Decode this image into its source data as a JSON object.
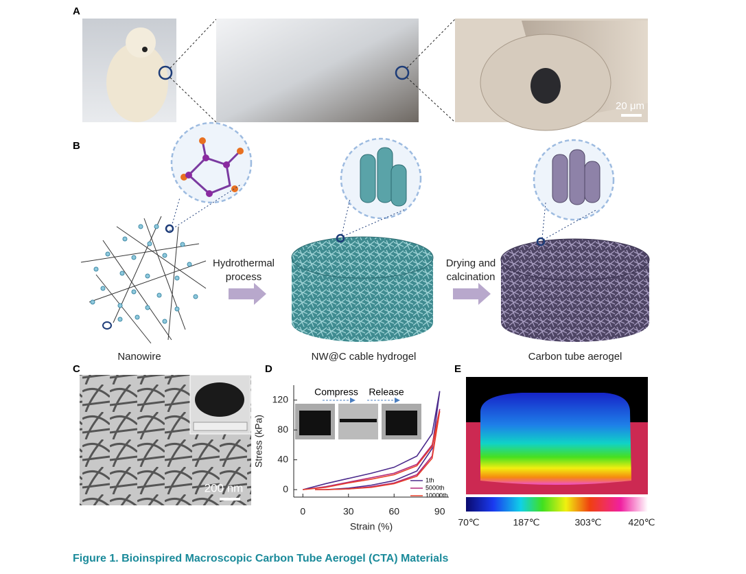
{
  "panel_labels": [
    "A",
    "B",
    "C",
    "D",
    "E"
  ],
  "panel_a": {
    "scale_bar": "20 μm"
  },
  "panel_b": {
    "steps": [
      [
        "Hydrothermal",
        "process"
      ],
      [
        "Drying and",
        "calcination"
      ]
    ],
    "labels": [
      "Nanowire",
      "NW@C cable hydrogel",
      "Carbon tube aerogel"
    ]
  },
  "panel_c": {
    "scale_bar": "200 nm"
  },
  "panel_d": {
    "annotations": [
      "Compress",
      "Release"
    ]
  },
  "chart_data": {
    "type": "line",
    "x_label": "Strain (%)",
    "y_label": "Stress (kPa)",
    "x": [
      0,
      15,
      30,
      45,
      60,
      75,
      85,
      90,
      85,
      75,
      60,
      45,
      30,
      15,
      8
    ],
    "series": [
      {
        "name": "1th",
        "color": "#4b2a8c",
        "values": [
          0,
          8,
          15,
          22,
          30,
          45,
          75,
          132,
          55,
          25,
          12,
          6,
          2,
          0,
          0
        ]
      },
      {
        "name": "5000th",
        "color": "#b0287a",
        "values": [
          0,
          4,
          10,
          16,
          22,
          34,
          60,
          108,
          45,
          20,
          9,
          4,
          1,
          0,
          0
        ]
      },
      {
        "name": "10000th",
        "color": "#e8402a",
        "values": [
          0,
          3,
          9,
          14,
          20,
          32,
          58,
          105,
          42,
          18,
          8,
          3,
          1,
          0,
          0
        ]
      }
    ],
    "xlim": [
      -6,
      96
    ],
    "xticks": [
      0,
      30,
      60,
      90
    ],
    "ylim": [
      -10,
      140
    ],
    "yticks": [
      0,
      40,
      80,
      120
    ]
  },
  "panel_e": {
    "colorbar_labels": [
      "70℃",
      "187℃",
      "303℃",
      "420℃"
    ]
  },
  "caption": "Figure 1.  Bioinspired Macroscopic Carbon Tube Aerogel (CTA) Materials"
}
